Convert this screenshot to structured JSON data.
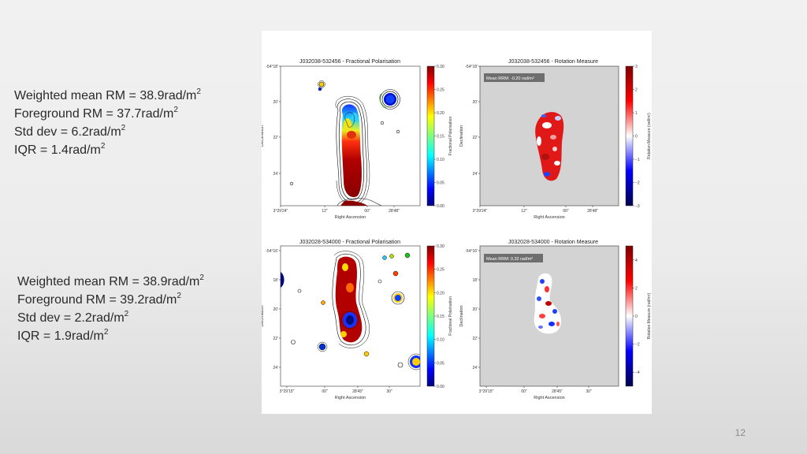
{
  "slide": {
    "number": "12",
    "stats_top": [
      {
        "label": "Weighted mean RM = ",
        "value": "38.9",
        "unit": "rad/m",
        "sup": "2"
      },
      {
        "label": "Foreground RM = ",
        "value": "37.7",
        "unit": "rad/m",
        "sup": "2"
      },
      {
        "label": "Std dev = ",
        "value": "6.2",
        "unit": "rad/m",
        "sup": "2"
      },
      {
        "label": "IQR = ",
        "value": "1.4",
        "unit": "rad/m",
        "sup": "2"
      }
    ],
    "stats_bottom": [
      {
        "label": "Weighted mean RM = ",
        "value": "38.9",
        "unit": "rad/m",
        "sup": "2"
      },
      {
        "label": "Foreground RM = ",
        "value": "39.2",
        "unit": "rad/m",
        "sup": "2"
      },
      {
        "label": "Std dev = ",
        "value": "2.2",
        "unit": "rad/m",
        "sup": "2"
      },
      {
        "label": "IQR = ",
        "value": "1.9",
        "unit": "rad/m",
        "sup": "2"
      }
    ]
  },
  "figure": {
    "panels": [
      {
        "title": "J032038-532456 - Fractional Polarisation",
        "xlabel": "Right Ascension",
        "ylabel": "Declination",
        "xticks": [
          "3°29'24\"",
          "12\"",
          "00\"",
          "28'48\""
        ],
        "yticks": [
          "-54°18'",
          "20'",
          "22'",
          "24'"
        ],
        "colorbar": {
          "label": "Fractional Polarisation",
          "ticks": [
            "0.30",
            "0.25",
            "0.20",
            "0.15",
            "0.10",
            "0.05",
            "0.00"
          ],
          "colormap": "jet",
          "range": [
            0.0,
            0.3
          ]
        }
      },
      {
        "title": "J032038-532456 - Rotation Measure",
        "xlabel": "Right Ascension",
        "ylabel": "Declination",
        "annotation": "Mean RRM: -0.20 rad/m²",
        "xticks": [
          "3°29'24\"",
          "12\"",
          "00\"",
          "28'48\""
        ],
        "yticks": [
          "-54°18'",
          "20'",
          "22'",
          "24'"
        ],
        "colorbar": {
          "label": "Rotation Measure (rad/m²)",
          "ticks": [
            "3",
            "2",
            "1",
            "0",
            "−1",
            "−2",
            "−3"
          ],
          "colormap": "seismic",
          "range": [
            -3,
            3
          ]
        }
      },
      {
        "title": "J032028-534000 - Fractional Polarisation",
        "xlabel": "Right Ascension",
        "ylabel": "Declination",
        "xticks": [
          "3°29'15\"",
          "00\"",
          "28'45\"",
          "30\""
        ],
        "yticks": [
          "-54°16'",
          "18'",
          "20'",
          "22'",
          "24'"
        ],
        "colorbar": {
          "label": "Fractional Polarisation",
          "ticks": [
            "0.30",
            "0.25",
            "0.20",
            "0.15",
            "0.10",
            "0.05",
            "0.00"
          ],
          "colormap": "jet",
          "range": [
            0.0,
            0.3
          ]
        }
      },
      {
        "title": "J032028-534000 - Rotation Measure",
        "xlabel": "Right Ascension",
        "ylabel": "Declination",
        "annotation": "Mean RRM: 0.32 rad/m²",
        "xticks": [
          "3°29'15\"",
          "00\"",
          "28'45\"",
          "30\""
        ],
        "yticks": [
          "-54°16'",
          "18'",
          "20'",
          "22'",
          "24'"
        ],
        "colorbar": {
          "label": "Rotation Measure (rad/m²)",
          "ticks": [
            "4",
            "2",
            "0",
            "−2",
            "−4"
          ],
          "colormap": "seismic",
          "range": [
            -5,
            5
          ]
        }
      }
    ]
  }
}
